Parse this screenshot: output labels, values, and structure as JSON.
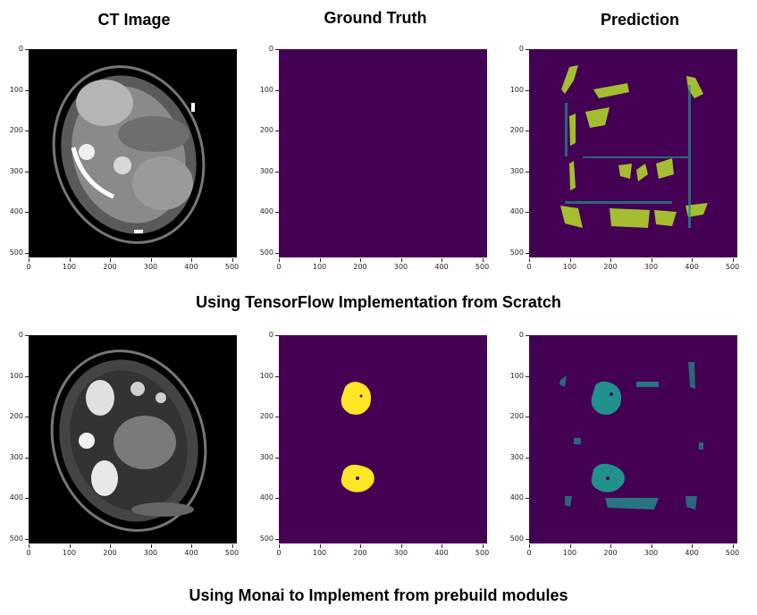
{
  "columns": [
    "CT Image",
    "Ground Truth",
    "Prediction"
  ],
  "rows": [
    {
      "caption": "Using TensorFlow Implementation from Scratch"
    },
    {
      "caption": "Using Monai to Implement from prebuild modules"
    }
  ],
  "axis": {
    "y_ticks": [
      "0",
      "100",
      "200",
      "300",
      "400",
      "500"
    ],
    "x_ticks": [
      "0",
      "100",
      "200",
      "300",
      "400",
      "500"
    ]
  },
  "colors": {
    "background_purple": "#440154",
    "ground_truth_yellow": "#fde725",
    "prediction_teal": "#21918c",
    "prediction_green": "#5ec962"
  }
}
